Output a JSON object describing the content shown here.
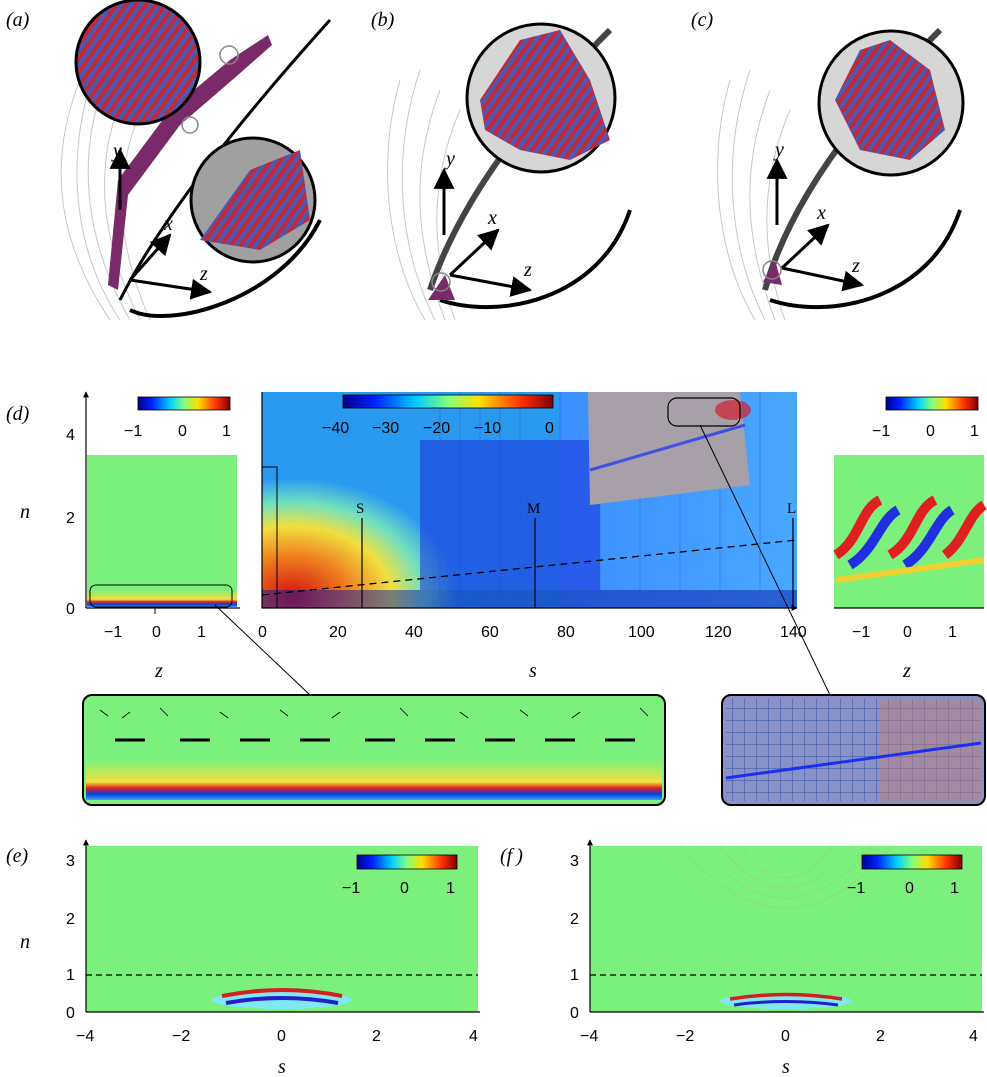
{
  "panels": {
    "a": {
      "label": "(a)",
      "axes": {
        "x": "x",
        "y": "y",
        "z": "z"
      }
    },
    "b": {
      "label": "(b)",
      "axes": {
        "x": "x",
        "y": "y",
        "z": "z"
      }
    },
    "c": {
      "label": "(c)",
      "axes": {
        "x": "x",
        "y": "y",
        "z": "z"
      }
    },
    "d": {
      "label": "(d)",
      "left": {
        "colorbar_ticks": [
          "−1",
          "0",
          "1"
        ],
        "y_ticks": [
          "0",
          "2",
          "4"
        ],
        "x_ticks": [
          "−1",
          "0",
          "1"
        ],
        "ylabel": "n",
        "xlabel": "z"
      },
      "main": {
        "colorbar_ticks": [
          "−40",
          "−30",
          "−20",
          "−10",
          "0"
        ],
        "x_ticks": [
          "0",
          "20",
          "40",
          "60",
          "80",
          "100",
          "120",
          "140"
        ],
        "xlabel": "s",
        "markers": [
          "S",
          "M",
          "L"
        ]
      },
      "right": {
        "colorbar_ticks": [
          "−1",
          "0",
          "1"
        ],
        "x_ticks": [
          "−1",
          "0",
          "1"
        ],
        "xlabel": "z"
      }
    },
    "e": {
      "label": "(e)",
      "colorbar_ticks": [
        "−1",
        "0",
        "1"
      ],
      "y_ticks": [
        "0",
        "1",
        "2",
        "3"
      ],
      "x_ticks": [
        "−4",
        "−2",
        "0",
        "2",
        "4"
      ],
      "ylabel": "n",
      "xlabel": "s"
    },
    "f": {
      "label": "(f )",
      "colorbar_ticks": [
        "−1",
        "0",
        "1"
      ],
      "y_ticks": [
        "0",
        "1",
        "2",
        "3"
      ],
      "x_ticks": [
        "−4",
        "−2",
        "0",
        "2",
        "4"
      ],
      "xlabel": "s"
    }
  },
  "colors": {
    "field_bg": "#7cf07c",
    "red": "#d4202a",
    "blue": "#2a2ad8",
    "purple": "#7a2a6a"
  }
}
